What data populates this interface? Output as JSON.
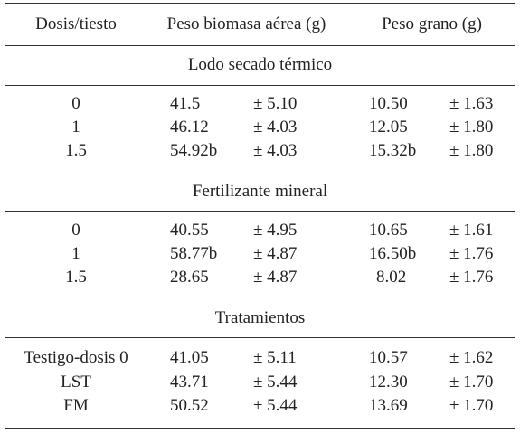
{
  "headers": {
    "col1": "Dosis/tiesto",
    "col2": "Peso biomasa aérea (g)",
    "col3": "Peso grano (g)"
  },
  "sections": [
    {
      "title": "Lodo secado térmico",
      "rows": [
        {
          "dose": "0",
          "biomass": "41.5",
          "biomass_sd": "± 5.10",
          "grain": "10.50",
          "grain_sd": "± 1.63"
        },
        {
          "dose": "1",
          "biomass": "46.12",
          "biomass_sd": "± 4.03",
          "grain": "12.05",
          "grain_sd": "± 1.80"
        },
        {
          "dose": "1.5",
          "biomass": "54.92b",
          "biomass_sd": "± 4.03",
          "grain": "15.32b",
          "grain_sd": "± 1.80"
        }
      ]
    },
    {
      "title": "Fertilizante mineral",
      "rows": [
        {
          "dose": "0",
          "biomass": "40.55",
          "biomass_sd": "± 4.95",
          "grain": "10.65",
          "grain_sd": "± 1.61"
        },
        {
          "dose": "1",
          "biomass": "58.77b",
          "biomass_sd": "± 4.87",
          "grain": "16.50b",
          "grain_sd": "± 1.76"
        },
        {
          "dose": "1.5",
          "biomass": "28.65",
          "biomass_sd": "± 4.87",
          "grain": "8.02",
          "grain_sd": "± 1.76"
        }
      ]
    },
    {
      "title": "Tratamientos",
      "rows": [
        {
          "dose": "Testigo-dosis 0",
          "biomass": "41.05",
          "biomass_sd": "± 5.11",
          "grain": "10.57",
          "grain_sd": "± 1.62"
        },
        {
          "dose": "LST",
          "biomass": "43.71",
          "biomass_sd": "± 5.44",
          "grain": "12.30",
          "grain_sd": "± 1.70"
        },
        {
          "dose": "FM",
          "biomass": "50.52",
          "biomass_sd": "± 5.44",
          "grain": "13.69",
          "grain_sd": "± 1.70"
        }
      ]
    }
  ]
}
